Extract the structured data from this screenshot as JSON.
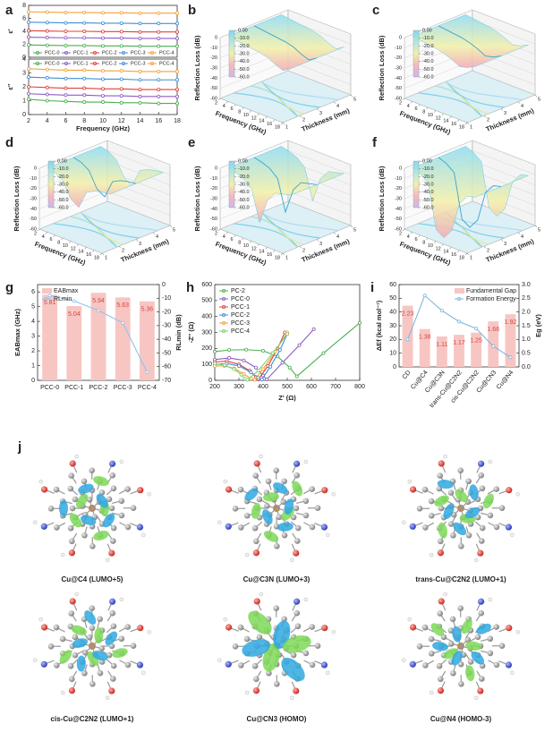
{
  "panel_labels": [
    "a",
    "b",
    "c",
    "d",
    "e",
    "f",
    "g",
    "h",
    "i",
    "j"
  ],
  "chart_data": [
    {
      "type": "line",
      "ylabel": "ε'",
      "xlim": [
        2,
        18
      ],
      "ylim": [
        0,
        8
      ],
      "yticks": [
        0,
        2,
        4,
        6,
        8
      ],
      "x": [
        2,
        4,
        6,
        8,
        10,
        12,
        14,
        16,
        18
      ],
      "legend": "lower center",
      "series": [
        {
          "name": "PCC-0",
          "color": "#4caf50",
          "values": [
            1.9,
            1.85,
            1.8,
            1.8,
            1.75,
            1.75,
            1.7,
            1.7,
            1.7
          ]
        },
        {
          "name": "PCC-1",
          "color": "#8e5cc4",
          "values": [
            3.1,
            3.05,
            3.0,
            3.0,
            2.95,
            2.95,
            2.9,
            2.9,
            2.9
          ]
        },
        {
          "name": "PCC-2",
          "color": "#e0403a",
          "values": [
            4.1,
            4.05,
            4.0,
            4.0,
            3.95,
            3.95,
            3.9,
            3.9,
            3.9
          ]
        },
        {
          "name": "PCC-3",
          "color": "#3f8fd8",
          "values": [
            5.4,
            5.35,
            5.3,
            5.3,
            5.25,
            5.25,
            5.2,
            5.2,
            5.2
          ]
        },
        {
          "name": "PCC-4",
          "color": "#f2a23a",
          "values": [
            7.0,
            6.95,
            6.9,
            6.9,
            6.85,
            6.85,
            6.8,
            6.8,
            6.8
          ]
        }
      ]
    },
    {
      "type": "line",
      "ylabel": "ε''",
      "xlabel": "Frequency (GHz)",
      "xlim": [
        2,
        18
      ],
      "xticks": [
        2,
        4,
        6,
        8,
        10,
        12,
        14,
        16,
        18
      ],
      "ylim": [
        0,
        4
      ],
      "yticks": [
        0,
        1,
        2,
        3,
        4
      ],
      "x": [
        2,
        4,
        6,
        8,
        10,
        12,
        14,
        16,
        18
      ],
      "legend": "upper center",
      "series": [
        {
          "name": "PCC-0",
          "color": "#4caf50",
          "values": [
            1.1,
            1.0,
            0.95,
            0.9,
            0.9,
            0.85,
            0.85,
            0.8,
            0.8
          ]
        },
        {
          "name": "PCC-1",
          "color": "#8e5cc4",
          "values": [
            1.5,
            1.45,
            1.4,
            1.4,
            1.35,
            1.35,
            1.3,
            1.3,
            1.3
          ]
        },
        {
          "name": "PCC-2",
          "color": "#e0403a",
          "values": [
            2.0,
            1.95,
            1.9,
            1.9,
            1.85,
            1.85,
            1.8,
            1.8,
            1.8
          ]
        },
        {
          "name": "PCC-3",
          "color": "#3f8fd8",
          "values": [
            2.7,
            2.65,
            2.6,
            2.6,
            2.55,
            2.55,
            2.5,
            2.5,
            2.5
          ]
        },
        {
          "name": "PCC-4",
          "color": "#f2a23a",
          "values": [
            3.3,
            3.25,
            3.2,
            3.2,
            3.15,
            3.15,
            3.1,
            3.1,
            3.1
          ]
        }
      ]
    },
    {
      "type": "surface3d",
      "zlabel": "Reflection Loss (dB)",
      "xlabel": "Frequency (GHz)",
      "ylabel": "Thickness (mm)",
      "xlim": [
        2,
        18
      ],
      "xticks": [
        2,
        4,
        6,
        8,
        10,
        12,
        14,
        16,
        18
      ],
      "ylim": [
        1,
        5
      ],
      "yticks": [
        1,
        2,
        3,
        4,
        5
      ],
      "zlim": [
        -60,
        0
      ],
      "zticks": [
        0,
        -10,
        -20,
        -30,
        -40,
        -50,
        -60
      ],
      "cticks": [
        {
          "value": 0,
          "label": "0.00"
        },
        {
          "value": -10,
          "label": "-10.0"
        },
        {
          "value": -20,
          "label": "-20.0"
        },
        {
          "value": -30,
          "label": "-30.0"
        },
        {
          "value": -40,
          "label": "-40.0"
        },
        {
          "value": -50,
          "label": "-50.0"
        },
        {
          "value": -60,
          "label": "-60.0"
        }
      ],
      "x": [
        2,
        4,
        6,
        8,
        10,
        12,
        14,
        16,
        18
      ],
      "values": [
        -2,
        -3,
        -4,
        -5,
        -6,
        -8,
        -12,
        -15,
        -10
      ]
    },
    {
      "type": "surface3d",
      "zlabel": "Reflection Loss (dB)",
      "xlabel": "Frequency (GHz)",
      "ylabel": "Thickness (mm)",
      "xlim": [
        2,
        18
      ],
      "xticks": [
        2,
        4,
        6,
        8,
        10,
        12,
        14,
        16,
        18
      ],
      "ylim": [
        1,
        5
      ],
      "yticks": [
        1,
        2,
        3,
        4,
        5
      ],
      "zlim": [
        -60,
        0
      ],
      "zticks": [
        0,
        -10,
        -20,
        -30,
        -40,
        -50,
        -60
      ],
      "cticks": [
        {
          "value": 0,
          "label": "0.00"
        },
        {
          "value": -10,
          "label": "-10.0"
        },
        {
          "value": -20,
          "label": "-20.0"
        },
        {
          "value": -30,
          "label": "-30.0"
        },
        {
          "value": -40,
          "label": "-40.0"
        },
        {
          "value": -50,
          "label": "-50.0"
        },
        {
          "value": -60,
          "label": "-60.0"
        }
      ],
      "x": [
        2,
        4,
        6,
        8,
        10,
        12,
        14,
        16,
        18
      ],
      "values": [
        -2,
        -3,
        -4,
        -5,
        -7,
        -10,
        -14,
        -12,
        -8
      ]
    },
    {
      "type": "surface3d",
      "zlabel": "Reflection Loss (dB)",
      "xlabel": "Frequency (GHz)",
      "ylabel": "Thickness (mm)",
      "xlim": [
        2,
        18
      ],
      "xticks": [
        2,
        4,
        6,
        8,
        10,
        12,
        14,
        16,
        18
      ],
      "ylim": [
        1,
        5
      ],
      "yticks": [
        1,
        2,
        3,
        4,
        5
      ],
      "zlim": [
        -60,
        0
      ],
      "zticks": [
        0,
        -10,
        -20,
        -30,
        -40,
        -50,
        -60
      ],
      "cticks": [
        {
          "value": 0,
          "label": "0.00"
        },
        {
          "value": -10,
          "label": "-10.0"
        },
        {
          "value": -20,
          "label": "-20.0"
        },
        {
          "value": -30,
          "label": "-30.0"
        },
        {
          "value": -40,
          "label": "-40.0"
        },
        {
          "value": -50,
          "label": "-50.0"
        },
        {
          "value": -60,
          "label": "-60.0"
        }
      ],
      "x": [
        2,
        4,
        6,
        8,
        10,
        12,
        14,
        16,
        18
      ],
      "values": [
        -3,
        -5,
        -10,
        -25,
        -30,
        -12,
        -8,
        -6,
        -5
      ]
    },
    {
      "type": "surface3d",
      "zlabel": "Reflection Loss (dB)",
      "xlabel": "Frequency (GHz)",
      "ylabel": "Thickness (mm)",
      "xlim": [
        2,
        18
      ],
      "xticks": [
        2,
        4,
        6,
        8,
        10,
        12,
        14,
        16,
        18
      ],
      "ylim": [
        1,
        5
      ],
      "yticks": [
        1,
        2,
        3,
        4,
        5
      ],
      "zlim": [
        -60,
        0
      ],
      "zticks": [
        0,
        -10,
        -20,
        -30,
        -40,
        -50,
        -60
      ],
      "cticks": [
        {
          "value": 0,
          "label": "0.00"
        },
        {
          "value": -10,
          "label": "-10.0"
        },
        {
          "value": -20,
          "label": "-20.0"
        },
        {
          "value": -30,
          "label": "-30.0"
        },
        {
          "value": -40,
          "label": "-40.0"
        },
        {
          "value": -50,
          "label": "-50.0"
        },
        {
          "value": -60,
          "label": "-60.0"
        }
      ],
      "x": [
        2,
        4,
        6,
        8,
        10,
        12,
        14,
        16,
        18
      ],
      "values": [
        -3,
        -5,
        -8,
        -15,
        -45,
        -20,
        -10,
        -8,
        -6
      ]
    },
    {
      "type": "surface3d",
      "zlabel": "Reflection Loss (dB)",
      "xlabel": "Frequency (GHz)",
      "ylabel": "Thickness (mm)",
      "xlim": [
        2,
        18
      ],
      "xticks": [
        2,
        4,
        6,
        8,
        10,
        12,
        14,
        16,
        18
      ],
      "ylim": [
        1,
        5
      ],
      "yticks": [
        1,
        2,
        3,
        4,
        5
      ],
      "zlim": [
        -60,
        0
      ],
      "zticks": [
        0,
        -10,
        -20,
        -30,
        -40,
        -50,
        -60
      ],
      "cticks": [
        {
          "value": 0,
          "label": "0.00"
        },
        {
          "value": -10,
          "label": "-10.0"
        },
        {
          "value": -20,
          "label": "-20.0"
        },
        {
          "value": -30,
          "label": "-30.0"
        },
        {
          "value": -40,
          "label": "-40.0"
        },
        {
          "value": -50,
          "label": "-50.0"
        },
        {
          "value": -60,
          "label": "-60.0"
        }
      ],
      "x": [
        2,
        4,
        6,
        8,
        10,
        12,
        14,
        16,
        18
      ],
      "values": [
        -3,
        -6,
        -12,
        -55,
        -60,
        -50,
        -20,
        -10,
        -8
      ]
    },
    {
      "type": "bar",
      "categories": [
        "PCC-0",
        "PCC-1",
        "PCC-2",
        "PCC-3",
        "PCC-4"
      ],
      "ylabel": "EABmax (GHz)",
      "y2label": "RLmin (dB)",
      "ylim": [
        0,
        6.5
      ],
      "yticks": [
        0,
        1,
        2,
        3,
        4,
        5,
        6
      ],
      "y2lim": [
        -70,
        0
      ],
      "y2ticks": [
        0,
        -10,
        -20,
        -30,
        -40,
        -50,
        -60,
        -70
      ],
      "legend": "upper left",
      "series": [
        {
          "name": "EABmax",
          "color": "#f7c6c3",
          "values": [
            5.81,
            5.04,
            5.94,
            5.63,
            5.36
          ]
        },
        {
          "name": "RLmin",
          "type": "line",
          "axis": "y2",
          "color": "#8fc5e8",
          "values": [
            -8,
            -12,
            -19,
            -28,
            -64
          ]
        }
      ]
    },
    {
      "type": "line",
      "xlabel": "Z' (Ω)",
      "ylabel": "-Z'' (Ω)",
      "xlim": [
        200,
        800
      ],
      "xticks": [
        200,
        300,
        400,
        500,
        600,
        700,
        800
      ],
      "ylim": [
        0,
        600
      ],
      "yticks": [
        0,
        100,
        200,
        300,
        400,
        500,
        600
      ],
      "legend": "upper left",
      "series": [
        {
          "name": "PC-2",
          "color": "#4caf50",
          "x": [
            200,
            260,
            330,
            400,
            460,
            510,
            540,
            650,
            800
          ],
          "values": [
            180,
            190,
            192,
            185,
            150,
            80,
            25,
            170,
            360
          ]
        },
        {
          "name": "PCC-0",
          "color": "#8e5cc4",
          "x": [
            200,
            260,
            320,
            370,
            400,
            415,
            480,
            550,
            610
          ],
          "values": [
            130,
            140,
            125,
            80,
            30,
            5,
            110,
            220,
            320
          ]
        },
        {
          "name": "PCC-1",
          "color": "#e0403a",
          "x": [
            200,
            250,
            300,
            345,
            370,
            380,
            420,
            460,
            490
          ],
          "values": [
            115,
            120,
            100,
            60,
            20,
            5,
            90,
            200,
            300
          ]
        },
        {
          "name": "PCC-2",
          "color": "#3f8fd8",
          "x": [
            200,
            250,
            300,
            350,
            380,
            395,
            430,
            470,
            500
          ],
          "values": [
            100,
            105,
            90,
            50,
            15,
            5,
            85,
            190,
            290
          ]
        },
        {
          "name": "PCC-3",
          "color": "#f2a23a",
          "x": [
            200,
            240,
            280,
            320,
            350,
            365,
            400,
            450,
            500
          ],
          "values": [
            90,
            90,
            75,
            40,
            10,
            3,
            70,
            180,
            300
          ]
        },
        {
          "name": "PCC-4",
          "color": "#7fd06a",
          "x": [
            200,
            240,
            280,
            310,
            325,
            335,
            380,
            440,
            500
          ],
          "values": [
            105,
            95,
            70,
            35,
            10,
            3,
            60,
            170,
            290
          ]
        }
      ]
    },
    {
      "type": "bar",
      "categories": [
        "CD",
        "Cu@C4",
        "Cu@C3N",
        "trans-Cu@C2N2",
        "cis-Cu@C2N2",
        "Cu@CN3",
        "Cu@N4"
      ],
      "ylabel": "ΔEf (kcal mol⁻¹)",
      "y2label": "Eg (eV)",
      "ylim": [
        0,
        60
      ],
      "yticks": [
        0,
        10,
        20,
        30,
        40,
        50,
        60
      ],
      "y2lim": [
        0,
        3
      ],
      "y2ticks": [
        {
          "value": 0,
          "label": "0.0"
        },
        {
          "value": 0.5,
          "label": "0.5"
        },
        {
          "value": 1,
          "label": "1.0"
        },
        {
          "value": 1.5,
          "label": "1.5"
        },
        {
          "value": 2,
          "label": "2.0"
        },
        {
          "value": 2.5,
          "label": "2.5"
        },
        {
          "value": 3,
          "label": "3.0"
        }
      ],
      "legend": "upper right",
      "series": [
        {
          "name": "Fundamental Gap",
          "axis": "y2",
          "color": "#f7c6c3",
          "values": [
            2.23,
            1.38,
            1.11,
            1.17,
            1.25,
            1.66,
            1.92
          ]
        },
        {
          "name": "Formation Energy",
          "type": "line",
          "color": "#7fb8e0",
          "values": [
            20,
            52,
            41,
            33,
            28,
            15,
            7
          ]
        }
      ]
    }
  ],
  "molecules": [
    {
      "caption": "Cu@C4 (LUMO+5)"
    },
    {
      "caption": "Cu@C3N (LUMO+3)"
    },
    {
      "caption": "trans-Cu@C2N2 (LUMO+1)"
    },
    {
      "caption": "cis-Cu@C2N2 (LUMO+1)"
    },
    {
      "caption": "Cu@CN3 (HOMO)"
    },
    {
      "caption": "Cu@N4 (HOMO-3)"
    }
  ]
}
